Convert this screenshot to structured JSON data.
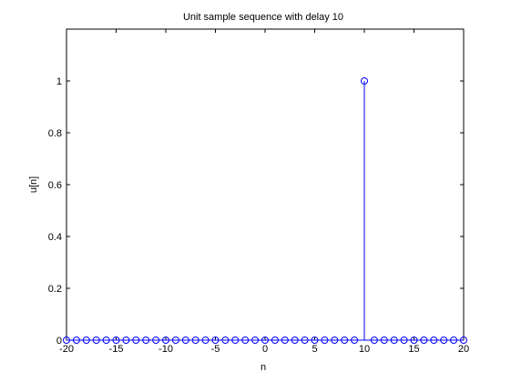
{
  "chart_data": {
    "type": "stem",
    "title": "Unit sample sequence with delay 10",
    "xlabel": "n",
    "ylabel": "u[n]",
    "xlim": [
      -20,
      20
    ],
    "ylim": [
      0,
      1.2
    ],
    "xticks": [
      -20,
      -15,
      -10,
      -5,
      0,
      5,
      10,
      15,
      20
    ],
    "yticks": [
      0,
      0.2,
      0.4,
      0.6,
      0.8,
      1
    ],
    "x": [
      -20,
      -19,
      -18,
      -17,
      -16,
      -15,
      -14,
      -13,
      -12,
      -11,
      -10,
      -9,
      -8,
      -7,
      -6,
      -5,
      -4,
      -3,
      -2,
      -1,
      0,
      1,
      2,
      3,
      4,
      5,
      6,
      7,
      8,
      9,
      10,
      11,
      12,
      13,
      14,
      15,
      16,
      17,
      18,
      19,
      20
    ],
    "y": [
      0,
      0,
      0,
      0,
      0,
      0,
      0,
      0,
      0,
      0,
      0,
      0,
      0,
      0,
      0,
      0,
      0,
      0,
      0,
      0,
      0,
      0,
      0,
      0,
      0,
      0,
      0,
      0,
      0,
      0,
      1,
      0,
      0,
      0,
      0,
      0,
      0,
      0,
      0,
      0,
      0
    ],
    "color": "#0000ff",
    "grid": false
  }
}
